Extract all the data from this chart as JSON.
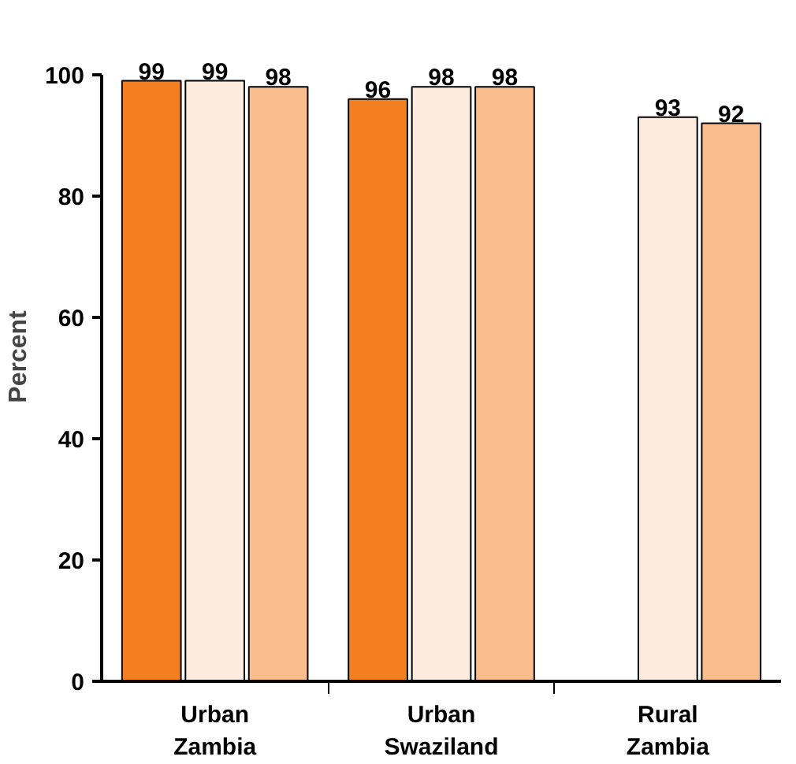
{
  "chart_data": {
    "type": "bar",
    "ylabel": "Percent",
    "categories": [
      "Urban\nZambia",
      "Urban\nSwaziland",
      "Rural\nZambia"
    ],
    "series": [
      {
        "color": "#f47f20",
        "values": [
          99,
          96,
          null
        ]
      },
      {
        "color": "#fdebe0",
        "values": [
          99,
          98,
          93
        ]
      },
      {
        "color": "#f9bd8e",
        "values": [
          98,
          98,
          92
        ]
      }
    ],
    "ylim": [
      0,
      100
    ],
    "yticks": [
      0,
      20,
      40,
      60,
      80,
      100
    ],
    "grid": false,
    "data_labels": true
  }
}
